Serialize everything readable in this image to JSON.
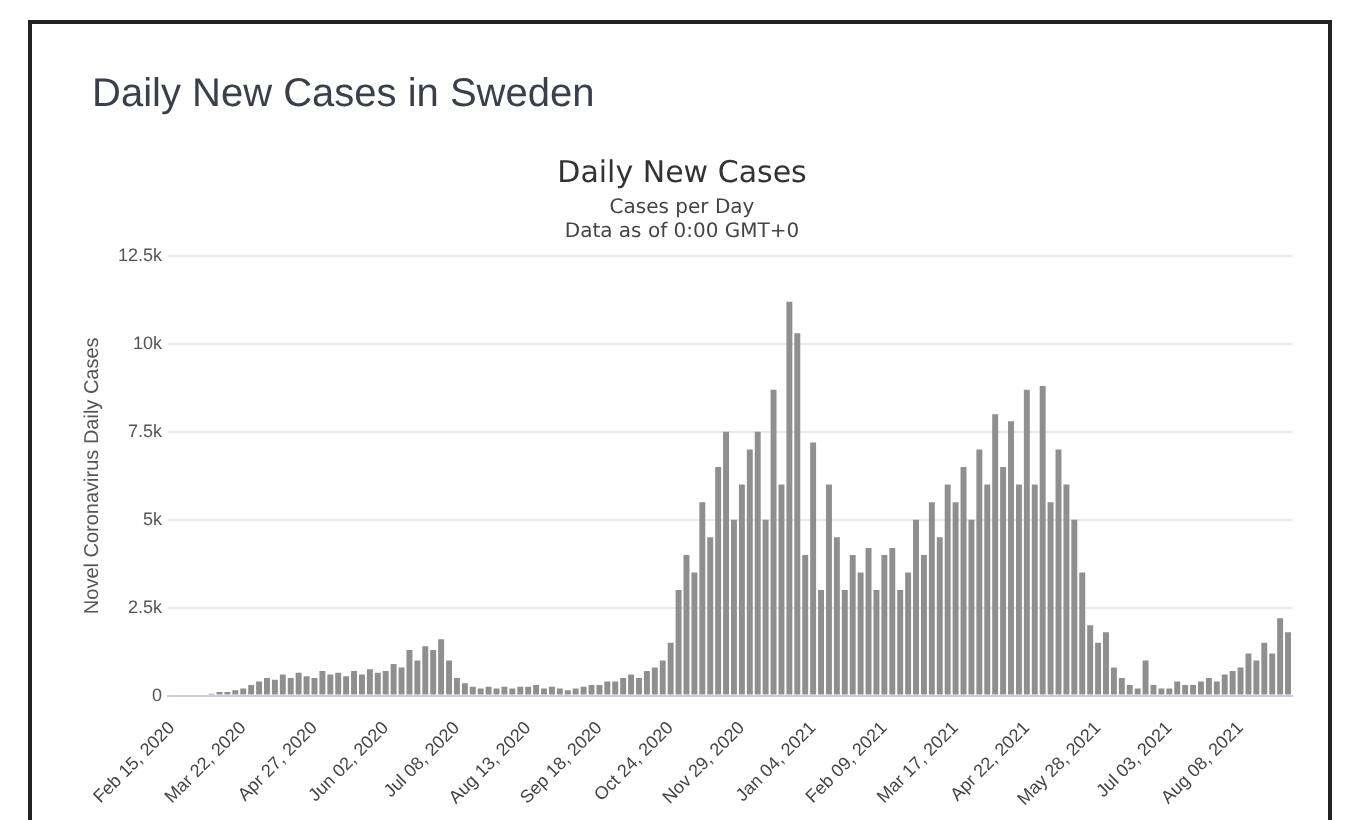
{
  "chart_data": {
    "type": "bar",
    "title": "Daily New Cases",
    "subtitle": "Cases per Day\nData as of 0:00 GMT+0",
    "annotations": [
      "Daily New Cases in Sweden"
    ],
    "ylabel": "Novel Coronavirus Daily Cases",
    "categories": [
      "Feb 15, 2020",
      null,
      null,
      null,
      null,
      null,
      null,
      null,
      null,
      "Mar 22, 2020",
      null,
      null,
      null,
      null,
      null,
      null,
      null,
      null,
      "Apr 27, 2020",
      null,
      null,
      null,
      null,
      null,
      null,
      null,
      null,
      "Jun 02, 2020",
      null,
      null,
      null,
      null,
      null,
      null,
      null,
      null,
      "Jul 08, 2020",
      null,
      null,
      null,
      null,
      null,
      null,
      null,
      null,
      "Aug 13, 2020",
      null,
      null,
      null,
      null,
      null,
      null,
      null,
      null,
      "Sep 18, 2020",
      null,
      null,
      null,
      null,
      null,
      null,
      null,
      null,
      "Oct 24, 2020",
      null,
      null,
      null,
      null,
      null,
      null,
      null,
      null,
      "Nov 29, 2020",
      null,
      null,
      null,
      null,
      null,
      null,
      null,
      null,
      "Jan 04, 2021",
      null,
      null,
      null,
      null,
      null,
      null,
      null,
      null,
      "Feb 09, 2021",
      null,
      null,
      null,
      null,
      null,
      null,
      null,
      null,
      "Mar 17, 2021",
      null,
      null,
      null,
      null,
      null,
      null,
      null,
      null,
      "Apr 22, 2021",
      null,
      null,
      null,
      null,
      null,
      null,
      null,
      null,
      "May 28, 2021",
      null,
      null,
      null,
      null,
      null,
      null,
      null,
      null,
      "Jul 03, 2021",
      null,
      null,
      null,
      null,
      null,
      null,
      null,
      null,
      "Aug 08, 2021",
      null,
      null,
      null,
      null,
      null,
      null
    ],
    "values": [
      0,
      0,
      0,
      0,
      0,
      50,
      100,
      100,
      150,
      200,
      300,
      400,
      500,
      450,
      600,
      500,
      650,
      550,
      500,
      700,
      600,
      650,
      550,
      700,
      600,
      750,
      650,
      700,
      900,
      800,
      1300,
      1000,
      1400,
      1300,
      1600,
      1000,
      500,
      350,
      250,
      200,
      250,
      200,
      250,
      200,
      250,
      250,
      300,
      200,
      250,
      200,
      150,
      200,
      250,
      300,
      300,
      400,
      400,
      500,
      600,
      500,
      700,
      800,
      1000,
      1500,
      3000,
      4000,
      3500,
      5500,
      4500,
      6500,
      7500,
      5000,
      6000,
      7000,
      7500,
      5000,
      8700,
      6000,
      11200,
      10300,
      4000,
      7200,
      3000,
      6000,
      4500,
      3000,
      4000,
      3500,
      4200,
      3000,
      4000,
      4200,
      3000,
      3500,
      5000,
      4000,
      5500,
      4500,
      6000,
      5500,
      6500,
      5000,
      7000,
      6000,
      8000,
      6500,
      7800,
      6000,
      8700,
      6000,
      8800,
      5500,
      7000,
      6000,
      5000,
      3500,
      2000,
      1500,
      1800,
      800,
      500,
      300,
      200,
      1000,
      300,
      200,
      200,
      400,
      300,
      300,
      400,
      500,
      400,
      600,
      700,
      800,
      1200,
      1000,
      1500,
      1200,
      2200,
      1800
    ],
    "color": "#8f8f8f",
    "ylim": [
      0,
      12500
    ],
    "yticks": [
      {
        "value": 0,
        "label": "0"
      },
      {
        "value": 2500,
        "label": "2.5k"
      },
      {
        "value": 5000,
        "label": "5k"
      },
      {
        "value": 7500,
        "label": "7.5k"
      },
      {
        "value": 10000,
        "label": "10k"
      },
      {
        "value": 12500,
        "label": "12.5k"
      }
    ],
    "grid": "y",
    "legend": false
  }
}
